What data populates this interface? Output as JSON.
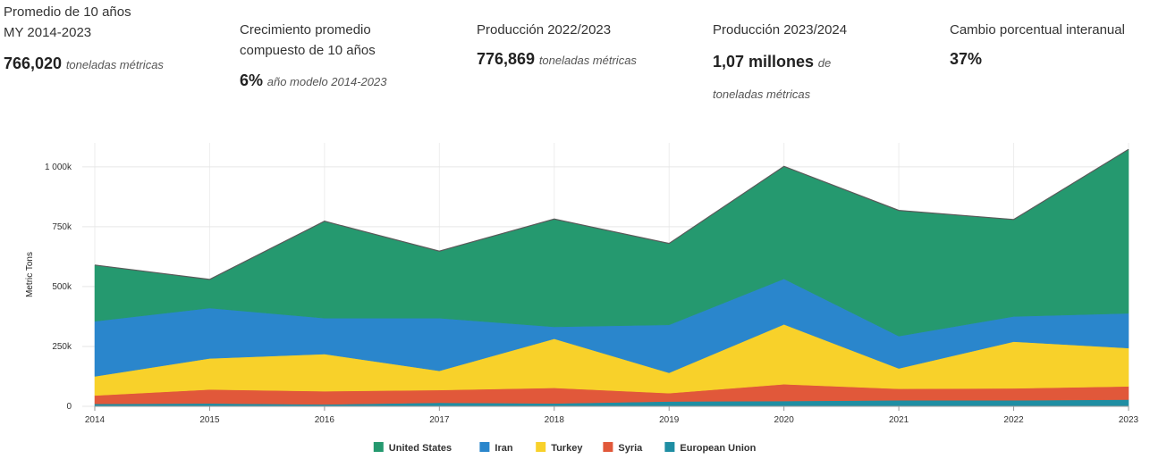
{
  "stats": [
    {
      "label_lines": [
        "Promedio de 10 años",
        "MY 2014-2023"
      ],
      "value": "766,020",
      "unit": "toneladas métricas"
    },
    {
      "label_lines": [
        "Crecimiento promedio",
        "compuesto de 10 años"
      ],
      "value": "6%",
      "unit": "año modelo 2014-2023"
    },
    {
      "label_lines": [
        "Producción 2022/2023"
      ],
      "value": "776,869",
      "unit": "toneladas métricas"
    },
    {
      "label_lines": [
        "Producción 2023/2024"
      ],
      "value": "1,07 millones",
      "unit_a": "de",
      "unit_b": "toneladas métricas"
    },
    {
      "label_lines": [
        "Cambio porcentual interanual"
      ],
      "value": "37%"
    }
  ],
  "chart_data": {
    "type": "area",
    "stacked": true,
    "ylabel": "Metric Tons",
    "xlabel": "",
    "x": [
      2014,
      2015,
      2016,
      2017,
      2018,
      2019,
      2020,
      2021,
      2022,
      2023
    ],
    "ylim": [
      0,
      1100000
    ],
    "yticks": [
      0,
      250000,
      500000,
      750000,
      1000000
    ],
    "ytick_labels": [
      "0",
      "250k",
      "500k",
      "750k",
      "1 000k"
    ],
    "xtick_labels": [
      "2014",
      "2015",
      "2016",
      "2017",
      "2018",
      "2019",
      "2020",
      "2021",
      "2022",
      "2023"
    ],
    "grid": true,
    "legend_position": "bottom",
    "series": [
      {
        "name": "European Union",
        "color": "#1f8ea3",
        "values": [
          10000,
          12000,
          8000,
          15000,
          12000,
          20000,
          22000,
          25000,
          25000,
          28000
        ]
      },
      {
        "name": "Syria",
        "color": "#e1583a",
        "values": [
          35000,
          58000,
          55000,
          53000,
          65000,
          35000,
          70000,
          48000,
          50000,
          55000
        ]
      },
      {
        "name": "Turkey",
        "color": "#f8d12a",
        "values": [
          80000,
          130000,
          155000,
          80000,
          205000,
          85000,
          250000,
          85000,
          195000,
          160000
        ]
      },
      {
        "name": "Iran",
        "color": "#2a86cc",
        "values": [
          230000,
          210000,
          150000,
          220000,
          50000,
          200000,
          190000,
          135000,
          105000,
          145000
        ]
      },
      {
        "name": "United States",
        "color": "#25996f",
        "values": [
          235000,
          120000,
          405000,
          280000,
          450000,
          340000,
          470000,
          525000,
          405000,
          685000
        ]
      }
    ]
  }
}
